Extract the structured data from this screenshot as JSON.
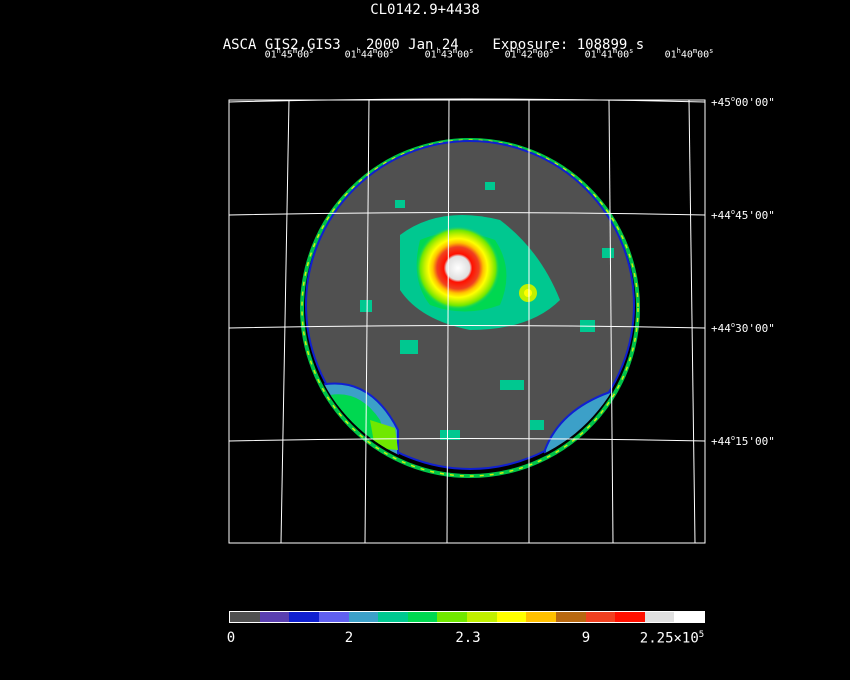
{
  "header": {
    "object": "CL0142.9+4438",
    "instrument": "ASCA GIS2,GIS3",
    "date": "2000 Jan 24",
    "exposure": "Exposure: 108899 s"
  },
  "ra_axis": {
    "labels": [
      {
        "h": "01",
        "m": "45",
        "s": "00"
      },
      {
        "h": "01",
        "m": "44",
        "s": "00"
      },
      {
        "h": "01",
        "m": "43",
        "s": "00"
      },
      {
        "h": "01",
        "m": "42",
        "s": "00"
      },
      {
        "h": "01",
        "m": "41",
        "s": "00"
      },
      {
        "h": "01",
        "m": "40",
        "s": "00"
      }
    ]
  },
  "dec_axis": {
    "labels": [
      {
        "d": "+45",
        "m": "00",
        "s": "00"
      },
      {
        "d": "+44",
        "m": "45",
        "s": "00"
      },
      {
        "d": "+44",
        "m": "30",
        "s": "00"
      },
      {
        "d": "+44",
        "m": "15",
        "s": "00"
      }
    ]
  },
  "colorbar": {
    "colors": [
      "#505050",
      "#5a3fb0",
      "#1020d0",
      "#6060f0",
      "#3ca0c8",
      "#00c890",
      "#00d850",
      "#70e800",
      "#c0f000",
      "#ffff00",
      "#ffc000",
      "#b86810",
      "#f04020",
      "#ff1000",
      "#e0e0e0",
      "#ffffff"
    ],
    "labels": [
      "0",
      "2",
      "2.3",
      "9"
    ],
    "max_label": {
      "base": "2.25×10",
      "exp": "5"
    }
  }
}
